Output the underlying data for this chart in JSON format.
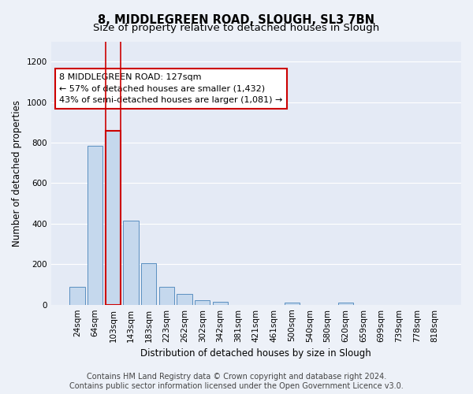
{
  "title": "8, MIDDLEGREEN ROAD, SLOUGH, SL3 7BN",
  "subtitle": "Size of property relative to detached houses in Slough",
  "xlabel": "Distribution of detached houses by size in Slough",
  "ylabel": "Number of detached properties",
  "categories": [
    "24sqm",
    "64sqm",
    "103sqm",
    "143sqm",
    "183sqm",
    "223sqm",
    "262sqm",
    "302sqm",
    "342sqm",
    "381sqm",
    "421sqm",
    "461sqm",
    "500sqm",
    "540sqm",
    "580sqm",
    "620sqm",
    "659sqm",
    "699sqm",
    "739sqm",
    "778sqm",
    "818sqm"
  ],
  "values": [
    90,
    785,
    860,
    415,
    205,
    88,
    52,
    22,
    15,
    0,
    0,
    0,
    12,
    0,
    0,
    12,
    0,
    0,
    0,
    0,
    0
  ],
  "bar_color": "#c5d8ed",
  "bar_edge_color": "#5a8fc0",
  "highlight_index": 2,
  "highlight_color": "#c5d8ed",
  "highlight_edge_color": "#cc0000",
  "ylim": [
    0,
    1300
  ],
  "yticks": [
    0,
    200,
    400,
    600,
    800,
    1000,
    1200
  ],
  "annotation_text": "8 MIDDLEGREEN ROAD: 127sqm\n← 57% of detached houses are smaller (1,432)\n43% of semi-detached houses are larger (1,081) →",
  "footnote": "Contains HM Land Registry data © Crown copyright and database right 2024.\nContains public sector information licensed under the Open Government Licence v3.0.",
  "bg_color": "#edf1f8",
  "plot_bg_color": "#e4eaf5",
  "grid_color": "#ffffff",
  "title_fontsize": 10.5,
  "subtitle_fontsize": 9.5,
  "label_fontsize": 8.5,
  "tick_fontsize": 7.5,
  "annotation_fontsize": 8,
  "footnote_fontsize": 7
}
